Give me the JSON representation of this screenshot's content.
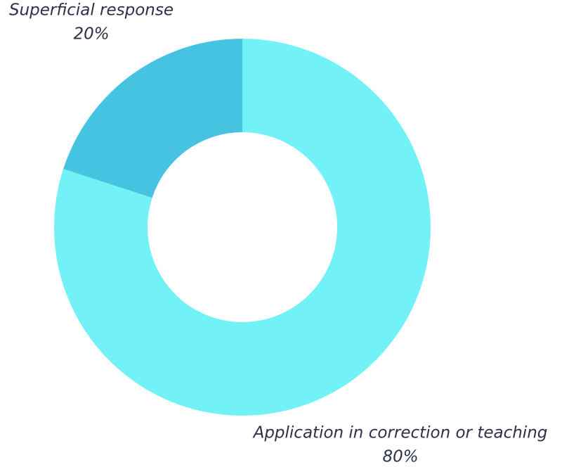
{
  "chart_data": {
    "type": "donut",
    "categories": [
      "Application in correction or teaching",
      "Superficial response"
    ],
    "values": [
      80,
      20
    ],
    "value_labels": [
      "80%",
      "20%"
    ],
    "colors": [
      "#72f1f6",
      "#47c3e2"
    ]
  }
}
